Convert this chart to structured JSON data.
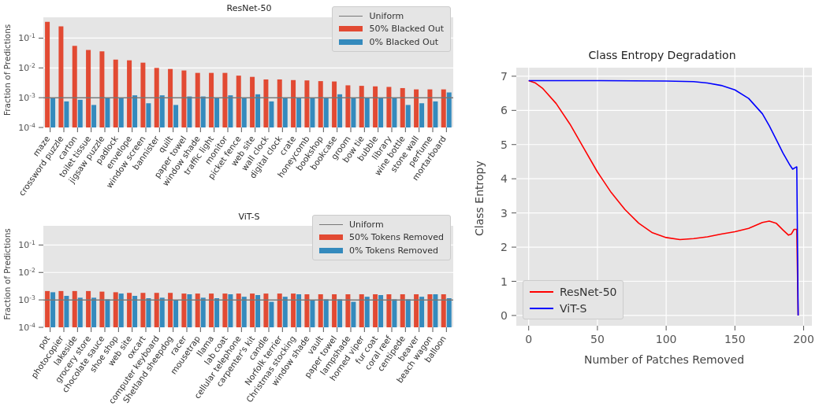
{
  "chart_data": [
    {
      "type": "bar",
      "title": "ResNet-50",
      "ylabel": "Fraction of Predictions",
      "log": "y",
      "grid": "y",
      "legend": "top right",
      "categories": [
        "maze",
        "crossword puzzle",
        "carton",
        "toilet tissue",
        "jigsaw puzzle",
        "padlock",
        "envelope",
        "window screen",
        "bannister",
        "quilt",
        "paper towel",
        "window shade",
        "traffic light",
        "monitor",
        "picket fence",
        "web site",
        "wall clock",
        "digital clock",
        "crate",
        "honeycomb",
        "bookshop",
        "bookcase",
        "groom",
        "bow tie",
        "bubble",
        "library",
        "wine bottle",
        "stone wall",
        "perfume",
        "mortarboard"
      ],
      "series": [
        {
          "name": "50% Blacked Out",
          "color": "#e24a33",
          "values": [
            0.35,
            0.25,
            0.055,
            0.04,
            0.036,
            0.019,
            0.018,
            0.015,
            0.01,
            0.0092,
            0.0082,
            0.0068,
            0.0068,
            0.0068,
            0.0055,
            0.005,
            0.0041,
            0.0041,
            0.0039,
            0.0038,
            0.0036,
            0.0035,
            0.0026,
            0.0025,
            0.0024,
            0.0023,
            0.0021,
            0.0019,
            0.0019,
            0.0019
          ]
        },
        {
          "name": "0% Blacked Out",
          "color": "#348abd",
          "values": [
            0.00095,
            0.00075,
            0.00085,
            0.00057,
            0.001,
            0.001,
            0.0012,
            0.00065,
            0.0012,
            0.00057,
            0.0011,
            0.0011,
            0.00095,
            0.0012,
            0.00095,
            0.0013,
            0.00075,
            0.00095,
            0.00095,
            0.001,
            0.00095,
            0.0013,
            0.00095,
            0.001,
            0.00095,
            0.00095,
            0.00057,
            0.00065,
            0.00075,
            0.0015
          ]
        }
      ],
      "ref_lines": [
        {
          "axis": "y",
          "value": 0.001,
          "label": "Uniform",
          "color": "#777777"
        }
      ],
      "ylim": [
        0.0001,
        0.5
      ],
      "yticks": [
        {
          "value": 0.0001,
          "label": "10$^{-4}$"
        },
        {
          "value": 0.001,
          "label": "10$^{-3}$"
        },
        {
          "value": 0.01,
          "label": "10$^{-2}$"
        },
        {
          "value": 0.1,
          "label": "10$^{-1}$"
        }
      ]
    },
    {
      "type": "bar",
      "title": "ViT-S",
      "ylabel": "Fraction of Predictions",
      "log": "y",
      "grid": "y",
      "legend": "top right",
      "categories": [
        "pot",
        "photocopier",
        "lakeside",
        "grocery store",
        "chocolate sauce",
        "shoe shop",
        "web site",
        "oxcart",
        "computer keyboard",
        "Shetland sheepdog",
        "racer",
        "mousetrap",
        "llama",
        "lab coat",
        "cellular telephone",
        "carpenter's kit",
        "candle",
        "Norfolk terrier",
        "Christmas stocking",
        "window shade",
        "vault",
        "paper towel",
        "lampshade",
        "horned viper",
        "fur coat",
        "coral reef",
        "centipede",
        "beaver",
        "beach wagon",
        "balloon"
      ],
      "series": [
        {
          "name": "50% Tokens Removed",
          "color": "#e24a33",
          "values": [
            0.0021,
            0.0021,
            0.0021,
            0.0021,
            0.002,
            0.0019,
            0.0018,
            0.0018,
            0.0018,
            0.0018,
            0.0017,
            0.0017,
            0.0017,
            0.0017,
            0.0017,
            0.0017,
            0.0017,
            0.0017,
            0.0017,
            0.0016,
            0.0016,
            0.0016,
            0.0016,
            0.0016,
            0.0016,
            0.0016,
            0.0016,
            0.0016,
            0.0016,
            0.0016
          ]
        },
        {
          "name": "0% Tokens Removed",
          "color": "#348abd",
          "values": [
            0.0019,
            0.0014,
            0.0012,
            0.0012,
            0.00105,
            0.0017,
            0.0014,
            0.00115,
            0.0012,
            0.001,
            0.0016,
            0.0012,
            0.00115,
            0.0016,
            0.0013,
            0.0015,
            0.00085,
            0.0013,
            0.0016,
            0.001,
            0.00105,
            0.00105,
            0.00085,
            0.0013,
            0.0015,
            0.00105,
            0.00105,
            0.0013,
            0.0016,
            0.00115
          ]
        }
      ],
      "ref_lines": [
        {
          "axis": "y",
          "value": 0.001,
          "label": "Uniform",
          "color": "#777777"
        }
      ],
      "ylim": [
        0.0001,
        0.5
      ],
      "yticks": [
        {
          "value": 0.0001,
          "label": "10$^{-4}$"
        },
        {
          "value": 0.001,
          "label": "10$^{-3}$"
        },
        {
          "value": 0.01,
          "label": "10$^{-2}$"
        },
        {
          "value": 0.1,
          "label": "10$^{-1}$"
        }
      ]
    },
    {
      "type": "line",
      "title": "Class Entropy Degradation",
      "xlabel": "Number of Patches Removed",
      "ylabel": "Class Entropy",
      "grid": true,
      "legend": "bottom left",
      "marker": "none",
      "line_style": "solid",
      "series": [
        {
          "name": "ResNet-50",
          "color": "#ff0000",
          "x": [
            0,
            5,
            10,
            20,
            30,
            40,
            50,
            60,
            70,
            80,
            90,
            100,
            110,
            120,
            130,
            140,
            150,
            160,
            170,
            175,
            180,
            185,
            189,
            191,
            193,
            195,
            196
          ],
          "values": [
            6.87,
            6.8,
            6.65,
            6.2,
            5.6,
            4.9,
            4.2,
            3.6,
            3.1,
            2.7,
            2.42,
            2.28,
            2.22,
            2.25,
            2.3,
            2.38,
            2.45,
            2.55,
            2.72,
            2.76,
            2.7,
            2.5,
            2.35,
            2.38,
            2.52,
            2.52,
            0
          ]
        },
        {
          "name": "ViT-S",
          "color": "#0000ff",
          "x": [
            0,
            50,
            100,
            120,
            130,
            140,
            150,
            160,
            170,
            175,
            180,
            185,
            190,
            192,
            194,
            195,
            196
          ],
          "values": [
            6.87,
            6.87,
            6.86,
            6.84,
            6.8,
            6.73,
            6.6,
            6.35,
            5.9,
            5.55,
            5.15,
            4.75,
            4.4,
            4.28,
            4.33,
            4.35,
            0
          ]
        }
      ],
      "xlim": [
        -9,
        206
      ],
      "xticks": [
        0,
        50,
        100,
        150,
        200
      ],
      "ylim": [
        -0.3,
        7.25
      ],
      "yticks": [
        0,
        1,
        2,
        3,
        4,
        5,
        6,
        7
      ]
    }
  ]
}
